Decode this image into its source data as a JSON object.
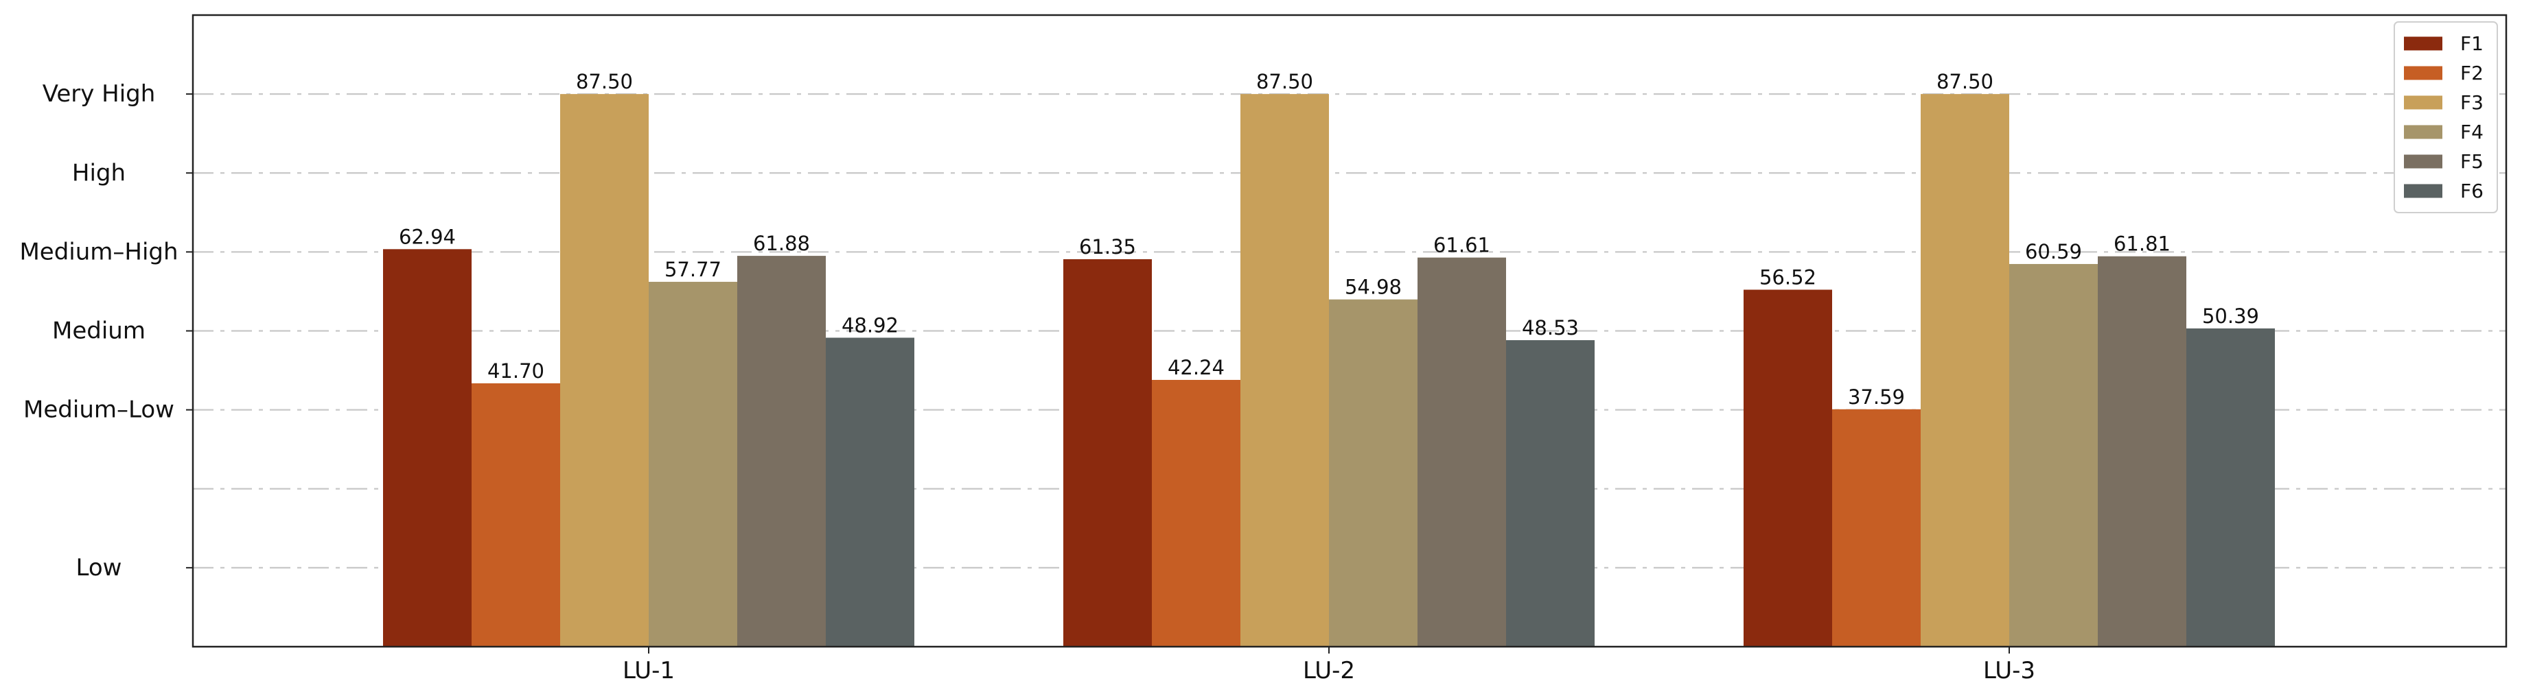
{
  "chart_data": {
    "type": "bar",
    "title": "",
    "xlabel": "",
    "ylabel": "",
    "ylim": [
      0,
      100
    ],
    "grid": "horizontal dashed",
    "legend_position": "top-right",
    "categories": [
      "LU-1",
      "LU-2",
      "LU-3"
    ],
    "series": [
      {
        "name": "F1",
        "color": "#8B2A0E",
        "values": [
          62.94,
          61.35,
          56.52
        ],
        "labels": [
          "62.94",
          "61.35",
          "56.52"
        ]
      },
      {
        "name": "F2",
        "color": "#C65E24",
        "values": [
          41.7,
          42.24,
          37.59
        ],
        "labels": [
          "41.70",
          "42.24",
          "37.59"
        ]
      },
      {
        "name": "F3",
        "color": "#C8A05A",
        "values": [
          87.5,
          87.5,
          87.5
        ],
        "labels": [
          "87.50",
          "87.50",
          "87.50"
        ]
      },
      {
        "name": "F4",
        "color": "#A6956A",
        "values": [
          57.77,
          54.98,
          60.59
        ],
        "labels": [
          "57.77",
          "54.98",
          "60.59"
        ]
      },
      {
        "name": "F5",
        "color": "#7A6F61",
        "values": [
          61.88,
          61.61,
          61.81
        ],
        "labels": [
          "61.88",
          "61.61",
          "61.81"
        ]
      },
      {
        "name": "F6",
        "color": "#5A6262",
        "values": [
          48.92,
          48.53,
          50.39
        ],
        "labels": [
          "48.92",
          "48.53",
          "50.39"
        ]
      }
    ],
    "y_ticks": [
      {
        "value": 12.5,
        "label": "Low"
      },
      {
        "value": 37.5,
        "label": "Medium–Low"
      },
      {
        "value": 50,
        "label": "Medium"
      },
      {
        "value": 62.5,
        "label": "Medium–High"
      },
      {
        "value": 75,
        "label": "High"
      },
      {
        "value": 87.5,
        "label": "Very High"
      }
    ],
    "grid_values": [
      12.5,
      25,
      37.5,
      50,
      62.5,
      75,
      87.5
    ]
  }
}
